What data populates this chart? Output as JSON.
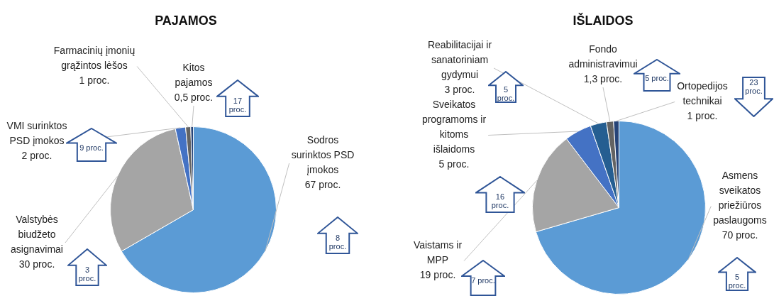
{
  "chart_data": [
    {
      "type": "pie",
      "title": "PAJAMOS",
      "categories": [
        "Sodros surinktos PSD įmokos",
        "Valstybės biudžeto asignavimai",
        "VMI surinktos PSD įmokos",
        "Farmacinių įmonių grąžintos lėšos",
        "Kitos pajamos"
      ],
      "values": [
        67,
        30,
        2,
        1,
        0.5
      ],
      "value_labels": [
        "67 proc.",
        "30 proc.",
        "2 proc.",
        "1 proc.",
        "0,5 proc."
      ],
      "colors": [
        "#5b9bd5",
        "#a5a5a5",
        "#4472c4",
        "#636363",
        "#264478"
      ],
      "annotations": [
        "17 proc.",
        "9 proc.",
        "8 proc.",
        "3 proc."
      ],
      "legend": false
    },
    {
      "type": "pie",
      "title": "IŠLAIDOS",
      "categories": [
        "Asmens sveikatos priežiūros paslaugoms",
        "Vaistams ir MPP",
        "Sveikatos programoms ir kitoms išlaidoms",
        "Reabilitacijai ir sanatoriniam gydymui",
        "Fondo administravimui",
        "Ortopedijos technikai"
      ],
      "values": [
        70,
        19,
        5,
        3,
        1.3,
        1
      ],
      "value_labels": [
        "70 proc.",
        "19 proc.",
        "5 proc.",
        "3 proc.",
        "1,3 proc.",
        "1 proc."
      ],
      "colors": [
        "#5b9bd5",
        "#a5a5a5",
        "#4472c4",
        "#255e91",
        "#636363",
        "#264478"
      ],
      "annotations": [
        "5 proc.",
        "5 proc.",
        "23 proc.",
        "16 proc.",
        "7 proc.",
        "5 proc."
      ],
      "legend": false
    }
  ]
}
